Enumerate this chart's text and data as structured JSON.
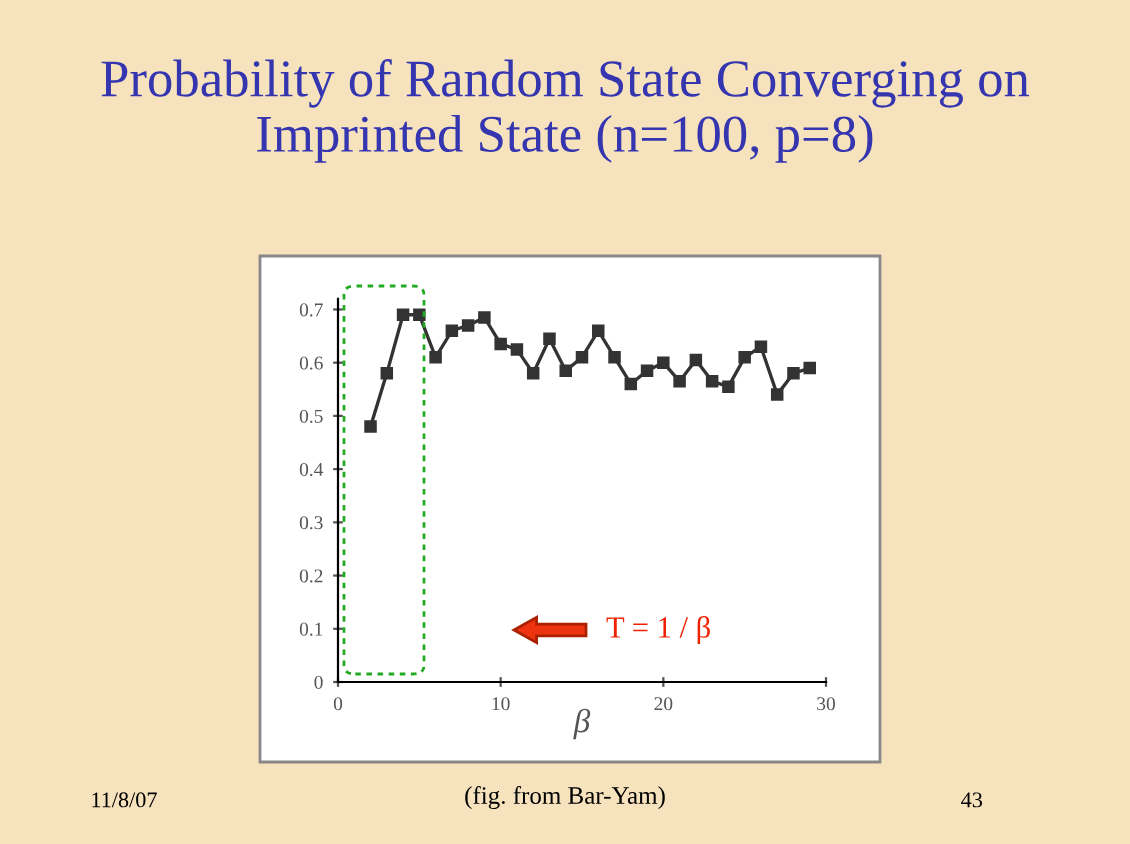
{
  "chart_data": {
    "type": "line",
    "title": "Probability of Random State Converging on Imprinted State (n=100, p=8)",
    "xlabel": "β",
    "x": [
      2,
      3,
      4,
      5,
      6,
      7,
      8,
      9,
      10,
      11,
      12,
      13,
      14,
      15,
      16,
      17,
      18,
      19,
      20,
      21,
      22,
      23,
      24,
      25,
      26,
      27,
      28,
      29
    ],
    "series": [
      {
        "color": "#333333",
        "values": [
          0.48,
          0.58,
          0.69,
          0.69,
          0.61,
          0.66,
          0.67,
          0.685,
          0.635,
          0.625,
          0.58,
          0.645,
          0.585,
          0.61,
          0.66,
          0.61,
          0.56,
          0.585,
          0.6,
          0.565,
          0.605,
          0.565,
          0.555,
          0.61,
          0.63,
          0.54,
          0.58,
          0.59
        ]
      }
    ],
    "xlim": [
      0,
      30
    ],
    "xticks": [
      {
        "value": 0,
        "label": "0"
      },
      10,
      20,
      30
    ],
    "ylim": [
      0,
      0.72
    ],
    "yticks": [
      0,
      0.1,
      0.2,
      0.3,
      0.4,
      0.5,
      0.6,
      0.7
    ],
    "marker": "square",
    "line_style": "solid",
    "grid": false,
    "legend": false,
    "annotations": [
      "T = 1 / β",
      "11/8/07",
      "(fig. from Bar-Yam)",
      "43"
    ]
  }
}
